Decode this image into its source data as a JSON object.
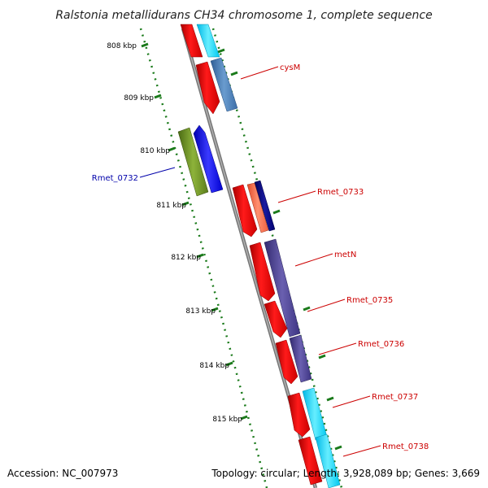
{
  "title": "Ralstonia metallidurans CH34 chromosome 1, complete sequence",
  "accession": "Accession: NC_007973",
  "summary": "Topology: circular; Length: 3,928,089 bp; Genes: 3,669",
  "colors": {
    "backbone": "#808080",
    "tick": "#1a7a1a",
    "label_forward": "#cc0000",
    "label_reverse": "#0000aa"
  },
  "ticks": [
    {
      "label": "808 kbp"
    },
    {
      "label": "809 kbp"
    },
    {
      "label": "810 kbp"
    },
    {
      "label": "811 kbp"
    },
    {
      "label": "812 kbp"
    },
    {
      "label": "813 kbp"
    },
    {
      "label": "814 kbp"
    },
    {
      "label": "815 kbp"
    }
  ],
  "gene_labels": [
    {
      "text": "cysM",
      "color": "#cc0000"
    },
    {
      "text": "Rmet_0732",
      "color": "#0000aa"
    },
    {
      "text": "Rmet_0733",
      "color": "#cc0000"
    },
    {
      "text": "metN",
      "color": "#cc0000"
    },
    {
      "text": "Rmet_0735",
      "color": "#cc0000"
    },
    {
      "text": "Rmet_0736",
      "color": "#cc0000"
    },
    {
      "text": "Rmet_0737",
      "color": "#cc0000"
    },
    {
      "text": "Rmet_0738",
      "color": "#cc0000"
    }
  ],
  "feature_colors": {
    "cds": "#ff0000",
    "cyan": "#33ddff",
    "steel": "#4a7eb8",
    "olive": "#6b8e23",
    "blue": "#0000ff",
    "salmon": "#ff7050",
    "navy": "#000080",
    "purple": "#483d8b"
  }
}
